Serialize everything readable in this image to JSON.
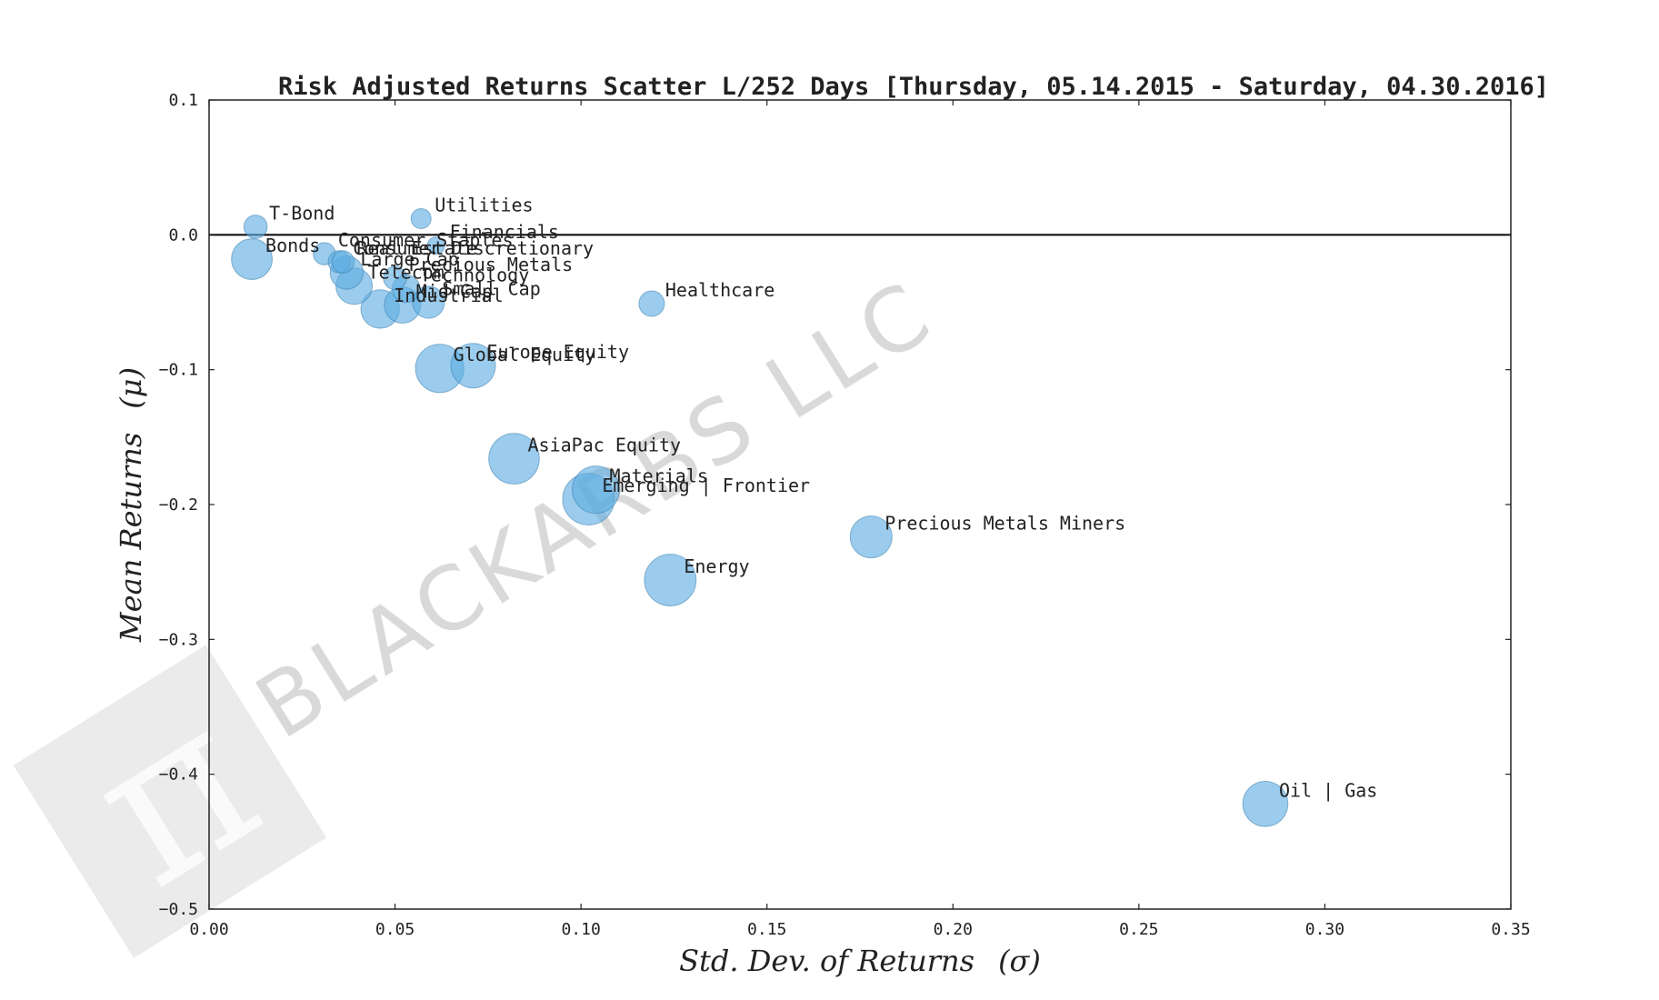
{
  "chart_data": {
    "type": "scatter",
    "title": "Risk Adjusted Returns Scatter L/252 Days [Thursday, 05.14.2015 - Saturday, 04.30.2016]",
    "xlabel": "Std. Dev. of Returns",
    "xlabel_symbol": "(σ)",
    "ylabel": "Mean Returns",
    "ylabel_symbol": "(μ)",
    "xlim": [
      0.0,
      0.35
    ],
    "ylim": [
      -0.5,
      0.1
    ],
    "xticks": [
      "0.00",
      "0.05",
      "0.10",
      "0.15",
      "0.20",
      "0.25",
      "0.30",
      "0.35"
    ],
    "yticks": [
      "0.1",
      "0.0",
      "−0.1",
      "−0.2",
      "−0.3",
      "−0.4",
      "−0.5"
    ],
    "xtick_values": [
      0.0,
      0.05,
      0.1,
      0.15,
      0.2,
      0.25,
      0.3,
      0.35
    ],
    "ytick_values": [
      0.1,
      0.0,
      -0.1,
      -0.2,
      -0.3,
      -0.4,
      -0.5
    ],
    "reference_line_y": 0.0,
    "marker_color": "#5dade2",
    "watermark": "BLACKARBS LLC",
    "points": [
      {
        "label": "T-Bond",
        "x": 0.0125,
        "y": 0.006,
        "size": 0.16
      },
      {
        "label": "Utilities",
        "x": 0.057,
        "y": 0.012,
        "size": 0.1
      },
      {
        "label": "Financials",
        "x": 0.061,
        "y": -0.008,
        "size": 0.05
      },
      {
        "label": "Bonds",
        "x": 0.0115,
        "y": -0.018,
        "size": 0.48
      },
      {
        "label": "Consumer Staples",
        "x": 0.031,
        "y": -0.014,
        "size": 0.14
      },
      {
        "label": "Consumer Discretionary",
        "x": 0.035,
        "y": -0.02,
        "size": 0.14
      },
      {
        "label": "Real Estate",
        "x": 0.036,
        "y": -0.02,
        "size": 0.14
      },
      {
        "label": "Large Cap",
        "x": 0.037,
        "y": -0.028,
        "size": 0.34
      },
      {
        "label": "Telecom",
        "x": 0.039,
        "y": -0.038,
        "size": 0.4
      },
      {
        "label": "Precious Metals",
        "x": 0.05,
        "y": -0.032,
        "size": 0.16
      },
      {
        "label": "Technology",
        "x": 0.053,
        "y": -0.04,
        "size": 0.24
      },
      {
        "label": "Small Cap",
        "x": 0.059,
        "y": -0.05,
        "size": 0.32
      },
      {
        "label": "Mid Cap",
        "x": 0.052,
        "y": -0.052,
        "size": 0.4
      },
      {
        "label": "Industrial",
        "x": 0.046,
        "y": -0.055,
        "size": 0.44
      },
      {
        "label": "Healthcare",
        "x": 0.119,
        "y": -0.051,
        "size": 0.2
      },
      {
        "label": "Europe Equity",
        "x": 0.071,
        "y": -0.097,
        "size": 0.55
      },
      {
        "label": "Global Equity",
        "x": 0.062,
        "y": -0.099,
        "size": 0.62
      },
      {
        "label": "AsiaPac Equity",
        "x": 0.082,
        "y": -0.166,
        "size": 0.66
      },
      {
        "label": "Materials",
        "x": 0.104,
        "y": -0.189,
        "size": 0.6
      },
      {
        "label": "Emerging | Frontier",
        "x": 0.102,
        "y": -0.196,
        "size": 0.68
      },
      {
        "label": "Precious Metals Miners",
        "x": 0.178,
        "y": -0.224,
        "size": 0.5
      },
      {
        "label": "Energy",
        "x": 0.124,
        "y": -0.256,
        "size": 0.68
      },
      {
        "label": "Oil | Gas",
        "x": 0.284,
        "y": -0.422,
        "size": 0.56
      }
    ]
  }
}
